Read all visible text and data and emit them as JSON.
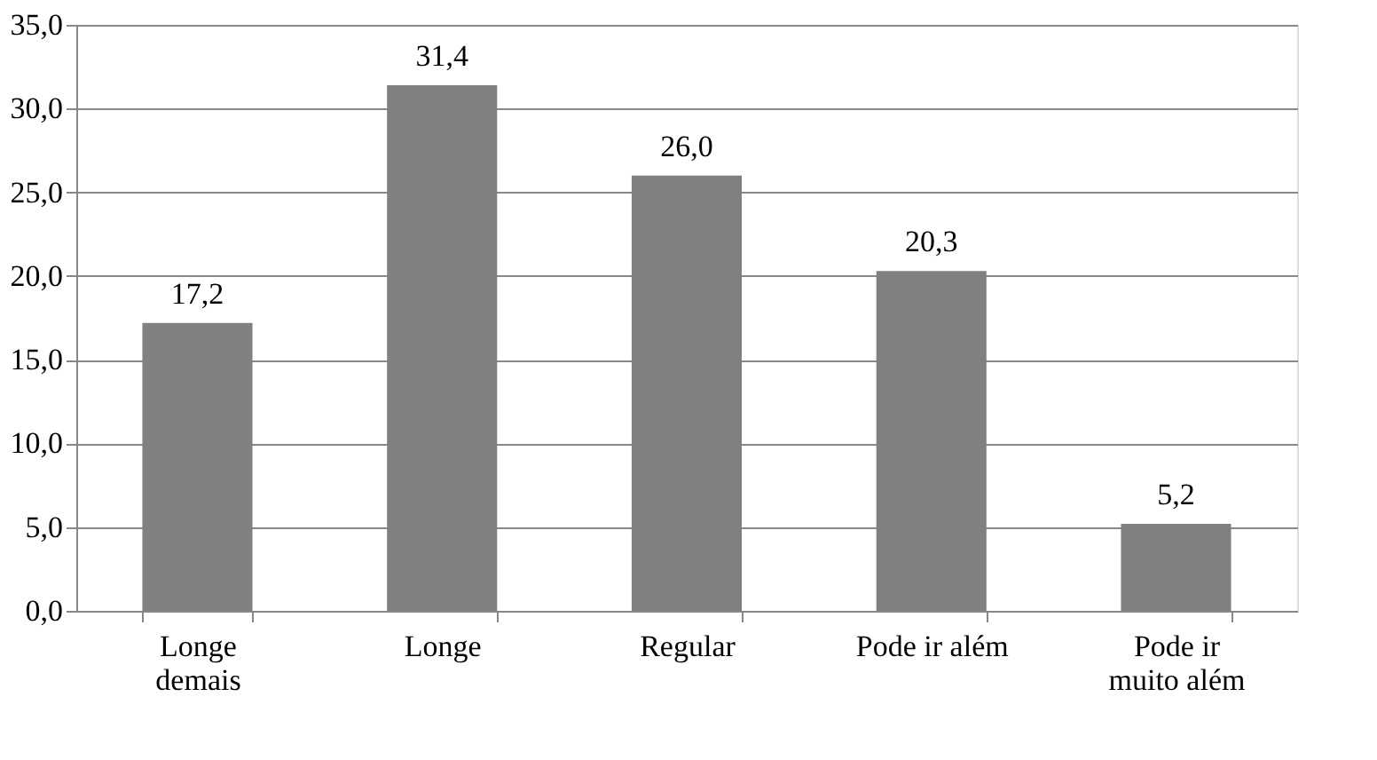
{
  "chart_data": {
    "type": "bar",
    "categories": [
      "Longe\ndemais",
      "Longe",
      "Regular",
      "Pode ir além",
      "Pode ir\nmuito além"
    ],
    "values": [
      17.2,
      31.4,
      26.0,
      20.3,
      5.2
    ],
    "value_labels": [
      "17,2",
      "31,4",
      "26,0",
      "20,3",
      "5,2"
    ],
    "color": "#808080",
    "ylim": [
      0,
      35
    ],
    "yticks": [
      {
        "value": 0,
        "label": "0,0"
      },
      {
        "value": 5,
        "label": "5,0"
      },
      {
        "value": 10,
        "label": "10,0"
      },
      {
        "value": 15,
        "label": "15,0"
      },
      {
        "value": 20,
        "label": "20,0"
      },
      {
        "value": 25,
        "label": "25,0"
      },
      {
        "value": 30,
        "label": "30,0"
      },
      {
        "value": 35,
        "label": "35,0"
      }
    ],
    "grid": "y"
  }
}
